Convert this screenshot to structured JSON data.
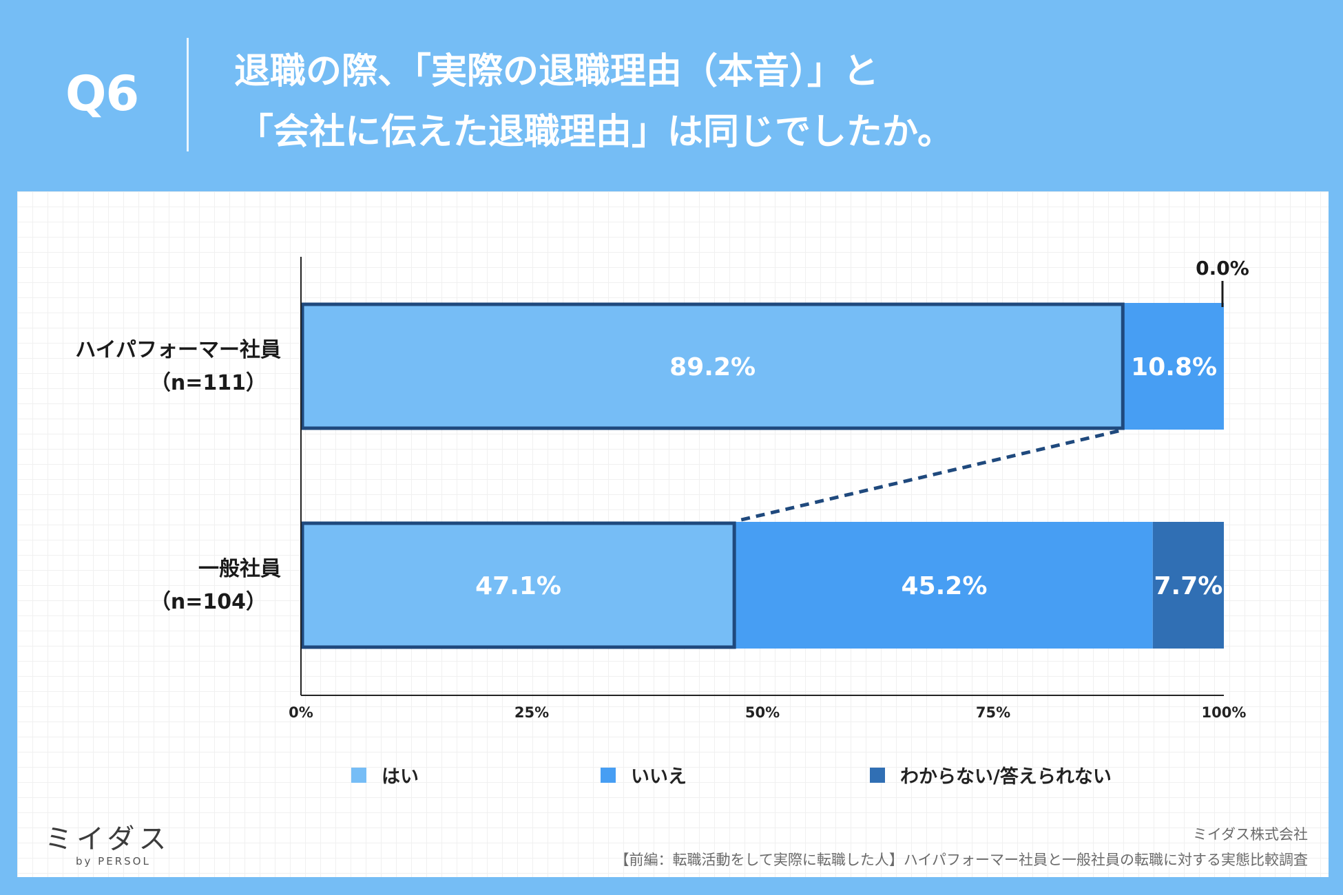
{
  "header": {
    "qnum": "Q6",
    "title_line1": "退職の際、「実際の退職理由（本音）」と",
    "title_line2": "「会社に伝えた退職理由」は同じでしたか。"
  },
  "colors": {
    "background": "#75bdf5",
    "yes": "#76bdf6",
    "no": "#479ef3",
    "unknown": "#306fb4",
    "outline": "#1f497d"
  },
  "chart_data": {
    "type": "bar",
    "orientation": "horizontal",
    "stacked": true,
    "categories": [
      {
        "label_line1": "ハイパフォーマー社員",
        "label_line2": "（n=111）"
      },
      {
        "label_line1": "一般社員",
        "label_line2": "（n=104）"
      }
    ],
    "series": [
      {
        "name": "はい",
        "values": [
          89.2,
          47.1
        ],
        "labels": [
          "89.2%",
          "47.1%"
        ]
      },
      {
        "name": "いいえ",
        "values": [
          10.8,
          45.2
        ],
        "labels": [
          "10.8%",
          "45.2%"
        ]
      },
      {
        "name": "わからない/答えられない",
        "values": [
          0.0,
          7.7
        ],
        "labels": [
          "0.0%",
          "7.7%"
        ]
      }
    ],
    "xlim": [
      0,
      100
    ],
    "xticks": [
      "0%",
      "25%",
      "50%",
      "75%",
      "100%"
    ],
    "legend_position": "bottom",
    "highlight": "はい segment outlined in both bars, linked by a dashed connector"
  },
  "footer": {
    "logo_text": "ミイダス",
    "logo_sub": "by PERSOL",
    "company": "ミイダス株式会社",
    "survey": "【前編：転職活動をして実際に転職した人】ハイパフォーマー社員と一般社員の転職に対する実態比較調査"
  }
}
